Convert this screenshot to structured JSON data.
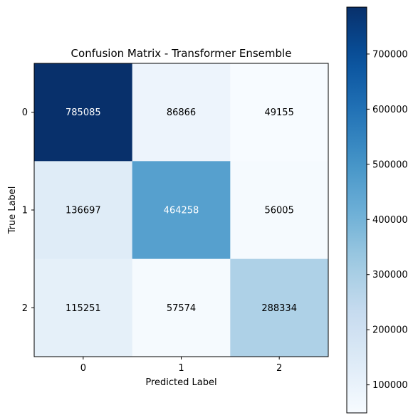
{
  "chart_data": {
    "type": "heatmap",
    "title": "Confusion Matrix - Transformer Ensemble",
    "xlabel": "Predicted Label",
    "ylabel": "True Label",
    "x_categories": [
      "0",
      "1",
      "2"
    ],
    "y_categories": [
      "0",
      "1",
      "2"
    ],
    "matrix": [
      [
        785085,
        86866,
        49155
      ],
      [
        136697,
        464258,
        56005
      ],
      [
        115251,
        57574,
        288334
      ]
    ],
    "colormap": "Blues",
    "color_range": [
      49155,
      785085
    ],
    "colorbar": {
      "ticks": [
        100000,
        200000,
        300000,
        400000,
        500000,
        600000,
        700000
      ],
      "tick_labels": [
        "100000",
        "200000",
        "300000",
        "400000",
        "500000",
        "600000",
        "700000"
      ]
    }
  }
}
